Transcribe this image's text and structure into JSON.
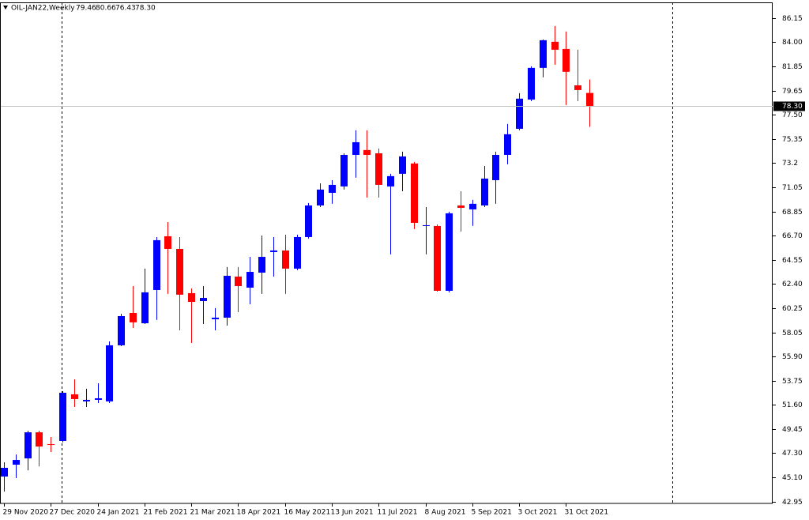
{
  "chart_data": {
    "type": "candlestick",
    "symbol": "OIL-JAN22,Weekly",
    "header": [
      "79.46",
      "80.66",
      "76.43",
      "78.30"
    ],
    "price_label": "78.30",
    "categories": [
      "29 Nov 2020",
      null,
      null,
      null,
      "27 Dec 2020",
      null,
      null,
      null,
      "24 Jan 2021",
      null,
      null,
      null,
      "21 Feb 2021",
      null,
      null,
      null,
      "21 Mar 2021",
      null,
      null,
      null,
      "18 Apr 2021",
      null,
      null,
      null,
      "16 May 2021",
      null,
      null,
      null,
      "13 Jun 2021",
      null,
      null,
      null,
      "11 Jul 2021",
      null,
      null,
      null,
      "8 Aug 2021",
      null,
      null,
      null,
      "5 Sep 2021",
      null,
      null,
      null,
      "3 Oct 2021",
      null,
      null,
      null,
      "31 Oct 2021",
      null,
      null
    ],
    "open": [
      45.2,
      46.26,
      46.82,
      49.15,
      48.09,
      48.38,
      52.54,
      51.91,
      52.05,
      51.91,
      56.92,
      59.81,
      58.89,
      61.86,
      66.66,
      65.53,
      61.58,
      60.87,
      59.25,
      59.39,
      63.06,
      62.07,
      63.41,
      65.25,
      65.39,
      63.77,
      66.59,
      69.41,
      70.54,
      71.11,
      73.93,
      74.36,
      74.07,
      71.11,
      72.24,
      73.16,
      67.58,
      67.58,
      61.79,
      69.41,
      69.06,
      69.41,
      71.67,
      73.93,
      76.26,
      78.87,
      81.7,
      84.03,
      83.39,
      80.14,
      79.46
    ],
    "high": [
      46.47,
      47.17,
      49.29,
      49.29,
      48.73,
      52.82,
      53.88,
      53.04,
      53.53,
      57.27,
      59.74,
      62.21,
      63.77,
      66.59,
      67.93,
      66.59,
      62.0,
      62.21,
      60.24,
      63.91,
      63.91,
      64.82,
      66.73,
      66.59,
      66.8,
      66.8,
      69.63,
      71.39,
      71.67,
      74.07,
      76.12,
      76.12,
      74.5,
      72.24,
      74.22,
      73.3,
      69.27,
      67.72,
      68.85,
      70.68,
      69.91,
      72.94,
      74.22,
      76.69,
      79.44,
      81.84,
      84.24,
      85.44,
      84.95,
      83.32,
      80.66
    ],
    "low": [
      43.86,
      45.06,
      45.76,
      46.11,
      47.39,
      48.24,
      51.41,
      51.41,
      51.76,
      51.76,
      56.85,
      58.47,
      58.82,
      59.18,
      61.51,
      58.26,
      57.13,
      58.82,
      58.26,
      58.68,
      59.88,
      60.59,
      61.51,
      63.06,
      61.51,
      63.63,
      66.45,
      69.27,
      69.56,
      70.83,
      71.89,
      70.12,
      70.12,
      65.04,
      70.68,
      67.3,
      65.04,
      61.72,
      61.65,
      67.08,
      67.58,
      69.27,
      69.56,
      73.09,
      76.12,
      78.73,
      80.85,
      81.98,
      78.38,
      78.73,
      76.43
    ],
    "close": [
      45.98,
      46.68,
      49.15,
      47.88,
      48.02,
      52.68,
      52.12,
      52.05,
      52.19,
      56.92,
      59.53,
      58.97,
      61.65,
      66.31,
      65.53,
      61.44,
      60.8,
      61.15,
      59.39,
      63.13,
      62.21,
      63.48,
      64.82,
      65.39,
      63.77,
      66.59,
      69.41,
      70.83,
      71.25,
      73.93,
      75.06,
      73.93,
      71.25,
      72.03,
      73.79,
      67.86,
      67.65,
      61.79,
      68.71,
      69.2,
      69.56,
      71.81,
      73.93,
      75.77,
      78.95,
      81.7,
      84.17,
      83.32,
      81.35,
      79.72,
      78.3
    ],
    "up_color": "#0000ff",
    "down_color": "#ff0000",
    "ylim": [
      42.8,
      87.55
    ],
    "yticks": [
      86.15,
      {
        "value": 84,
        "label": "84.00"
      },
      81.85,
      79.65,
      {
        "value": 77.5,
        "label": "77.50"
      },
      75.35,
      73.2,
      71.05,
      68.85,
      {
        "value": 66.7,
        "label": "66.70"
      },
      64.55,
      {
        "value": 62.4,
        "label": "62.40"
      },
      60.25,
      58.05,
      {
        "value": 55.9,
        "label": "55.90"
      },
      53.75,
      {
        "value": 51.6,
        "label": "51.60"
      },
      49.45,
      {
        "value": 47.3,
        "label": "47.30"
      },
      {
        "value": 45.1,
        "label": "45.10"
      },
      42.95
    ],
    "grid": false
  }
}
